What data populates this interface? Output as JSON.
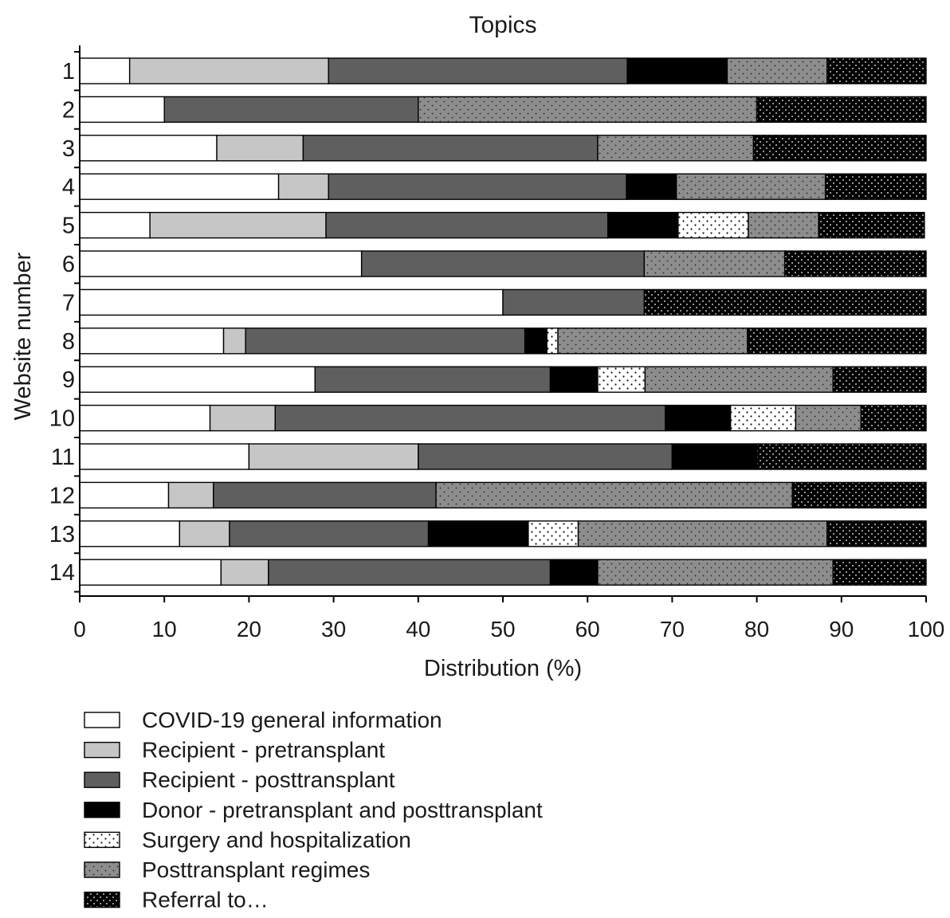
{
  "chart_data": {
    "type": "bar",
    "orientation": "horizontal",
    "stacked": true,
    "title": "Topics",
    "xlabel": "Distribution (%)",
    "ylabel": "Website number",
    "xlim": [
      0,
      100
    ],
    "x_ticks": [
      "0",
      "10",
      "20",
      "30",
      "40",
      "50",
      "60",
      "70",
      "80",
      "90",
      "100"
    ],
    "categories": [
      "1",
      "2",
      "3",
      "4",
      "5",
      "6",
      "7",
      "8",
      "9",
      "10",
      "11",
      "12",
      "13",
      "14"
    ],
    "grid": false,
    "legend_position": "bottom",
    "series": [
      {
        "name": "COVID-19 general information",
        "fill": "white",
        "values": [
          5.9,
          10.0,
          16.2,
          23.5,
          8.3,
          33.3,
          50.0,
          17.0,
          27.8,
          15.4,
          20.0,
          10.5,
          11.8,
          16.7
        ]
      },
      {
        "name": "Recipient - pretransplant",
        "fill": "light-gray",
        "values": [
          23.5,
          0,
          10.2,
          5.9,
          20.8,
          0,
          0,
          2.6,
          0,
          7.7,
          20.0,
          5.3,
          5.9,
          5.6
        ]
      },
      {
        "name": "Recipient - posttransplant",
        "fill": "dark-gray",
        "values": [
          35.3,
          30.0,
          34.8,
          35.2,
          33.3,
          33.4,
          16.7,
          33.0,
          27.8,
          46.1,
          30.0,
          26.3,
          23.5,
          33.3
        ]
      },
      {
        "name": "Donor - pretransplant and posttransplant",
        "fill": "black",
        "values": [
          11.8,
          0,
          0,
          5.9,
          8.3,
          0,
          0,
          2.6,
          5.6,
          7.7,
          10.0,
          0,
          11.8,
          5.6
        ]
      },
      {
        "name": "Surgery and hospitalization",
        "fill": "white-dotted",
        "values": [
          0,
          0,
          0,
          0,
          8.3,
          0,
          0,
          1.3,
          5.6,
          7.7,
          0,
          0,
          5.9,
          0
        ]
      },
      {
        "name": "Posttransplant regimes",
        "fill": "gray-dotted",
        "values": [
          11.8,
          40.0,
          18.4,
          17.6,
          8.3,
          16.6,
          0,
          22.4,
          22.2,
          7.7,
          0,
          42.1,
          29.4,
          27.8
        ]
      },
      {
        "name": "Referral to…",
        "fill": "black-dotted",
        "values": [
          11.7,
          20.0,
          20.4,
          11.9,
          12.5,
          16.7,
          33.3,
          21.1,
          11.0,
          7.7,
          20.0,
          15.8,
          11.7,
          11.0
        ]
      }
    ]
  }
}
